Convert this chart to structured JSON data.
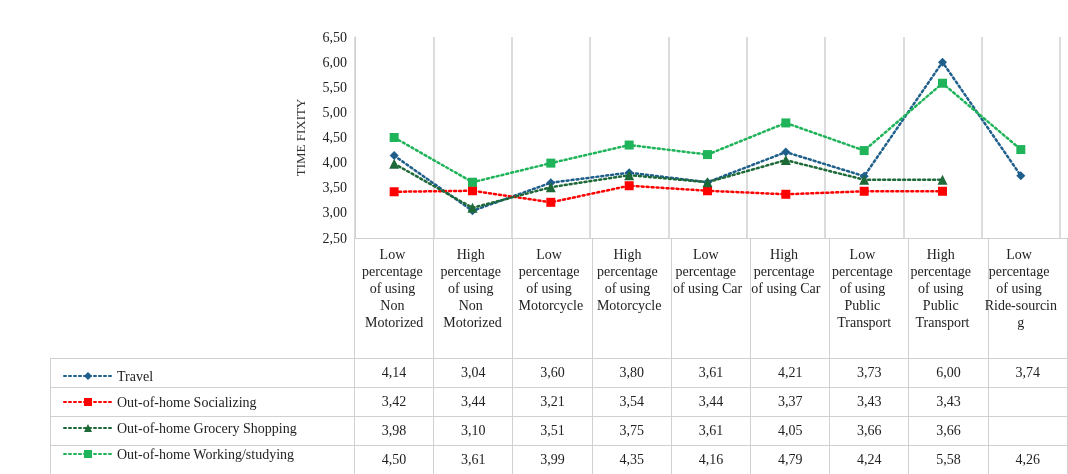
{
  "chart_data": {
    "type": "line",
    "ylabel": "TIME FIXITY",
    "categories": [
      "Low percentage of using Non Motorized",
      "High percentage of using Non Motorized",
      "Low percentage of using Motorcycle",
      "High percentage of using Motorcycle",
      "Low percentage of using Car",
      "High percentage of using Car",
      "Low percentage of using Public Transport",
      "High percentage of using Public Transport",
      "Low percentage of using Ride-sourcing"
    ],
    "series": [
      {
        "name": "Travel",
        "color": "#1f5f8b",
        "marker": "diamond",
        "values": [
          4.14,
          3.04,
          3.6,
          3.8,
          3.61,
          4.21,
          3.73,
          6.0,
          3.74
        ],
        "value_labels": [
          "4,14",
          "3,04",
          "3,60",
          "3,80",
          "3,61",
          "4,21",
          "3,73",
          "6,00",
          "3,74"
        ]
      },
      {
        "name": "Out-of-home Socializing",
        "color": "#ff0000",
        "marker": "square",
        "values": [
          3.42,
          3.44,
          3.21,
          3.54,
          3.44,
          3.37,
          3.43,
          3.43,
          null
        ],
        "value_labels": [
          "3,42",
          "3,44",
          "3,21",
          "3,54",
          "3,44",
          "3,37",
          "3,43",
          "3,43",
          null
        ]
      },
      {
        "name": "Out-of-home Grocery Shopping",
        "color": "#1d6a38",
        "marker": "triangle",
        "values": [
          3.98,
          3.1,
          3.51,
          3.75,
          3.61,
          4.05,
          3.66,
          3.66,
          null
        ],
        "value_labels": [
          "3,98",
          "3,10",
          "3,51",
          "3,75",
          "3,61",
          "4,05",
          "3,66",
          "3,66",
          null
        ]
      },
      {
        "name": "Out-of-home Working/studying",
        "color": "#1fb45a",
        "marker": "square",
        "values": [
          4.5,
          3.61,
          3.99,
          4.35,
          4.16,
          4.79,
          4.24,
          5.58,
          4.26
        ],
        "value_labels": [
          "4,50",
          "3,61",
          "3,99",
          "4,35",
          "4,16",
          "4,79",
          "4,24",
          "5,58",
          "4,26"
        ]
      }
    ],
    "ylim": [
      2.5,
      6.5
    ],
    "yticks": [
      {
        "value": 2.5,
        "label": "2,50"
      },
      {
        "value": 3,
        "label": "3,00"
      },
      {
        "value": 3.5,
        "label": "3,50"
      },
      {
        "value": 4,
        "label": "4,00"
      },
      {
        "value": 4.5,
        "label": "4,50"
      },
      {
        "value": 5,
        "label": "5,00"
      },
      {
        "value": 5.5,
        "label": "5,50"
      },
      {
        "value": 6,
        "label": "6,00"
      },
      {
        "value": 6.5,
        "label": "6,50"
      }
    ],
    "grid": "x",
    "legend": "bottom left",
    "line_style": "dotted"
  }
}
